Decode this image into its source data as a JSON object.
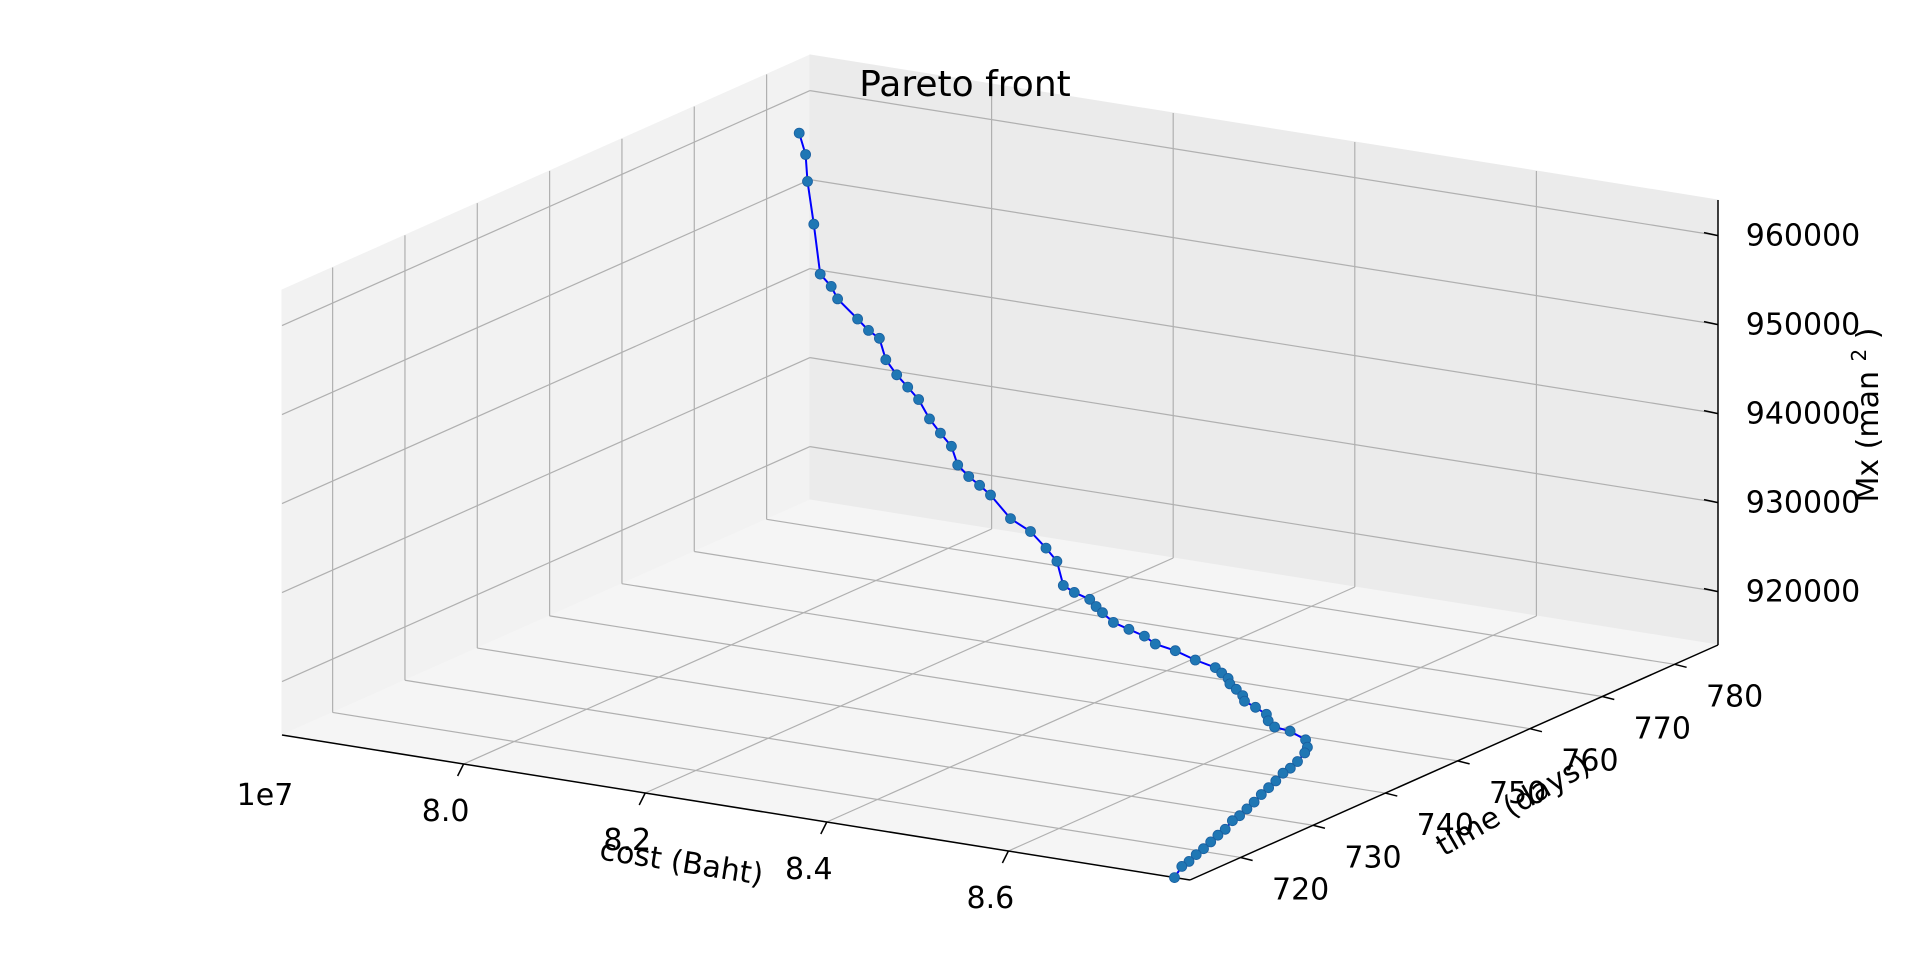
{
  "chart_data": {
    "type": "line",
    "title": "Pareto front",
    "xlabel": "cost (Baht)",
    "ylabel": "time (days)",
    "zlabel": "Mx (man",
    "zlabel_sup": "2",
    "zlabel_close": ")",
    "x_offset_text": "1e7",
    "x_ticks": [
      8.0,
      8.2,
      8.4,
      8.6
    ],
    "x_tick_labels": [
      "8.0",
      "8.2",
      "8.4",
      "8.6"
    ],
    "y_ticks": [
      720,
      730,
      740,
      750,
      760,
      770,
      780
    ],
    "y_tick_labels": [
      "720",
      "730",
      "740",
      "750",
      "760",
      "770",
      "780"
    ],
    "z_ticks": [
      920000,
      930000,
      940000,
      950000,
      960000
    ],
    "z_tick_labels": [
      "920000",
      "930000",
      "940000",
      "950000",
      "960000"
    ],
    "xlim": [
      7.8,
      8.8
    ],
    "ylim": [
      713,
      786
    ],
    "zlim": [
      914000,
      964000
    ],
    "grid": true,
    "series": [
      {
        "color": "#1f77b4",
        "line_color": "#0000ff",
        "points": [
          [
            7.82,
            782,
            957000
          ],
          [
            7.835,
            781,
            955200
          ],
          [
            7.845,
            780,
            952700
          ],
          [
            7.86,
            779,
            948500
          ],
          [
            7.875,
            778,
            943500
          ],
          [
            7.895,
            777,
            942800
          ],
          [
            7.91,
            776,
            942000
          ],
          [
            7.94,
            775,
            940600
          ],
          [
            7.96,
            774,
            940000
          ],
          [
            7.98,
            773,
            939800
          ],
          [
            7.995,
            772,
            938000
          ],
          [
            8.015,
            771,
            937000
          ],
          [
            8.035,
            770,
            936300
          ],
          [
            8.055,
            769,
            935600
          ],
          [
            8.075,
            768,
            934100
          ],
          [
            8.095,
            767,
            933200
          ],
          [
            8.115,
            766,
            932400
          ],
          [
            8.13,
            765,
            930900
          ],
          [
            8.15,
            764,
            930300
          ],
          [
            8.17,
            763,
            930000
          ],
          [
            8.19,
            762,
            929600
          ],
          [
            8.22,
            761,
            927800
          ],
          [
            8.25,
            760,
            927200
          ],
          [
            8.275,
            759,
            926100
          ],
          [
            8.295,
            758,
            925300
          ],
          [
            8.31,
            757,
            923200
          ],
          [
            8.33,
            756,
            923100
          ],
          [
            8.355,
            755,
            923100
          ],
          [
            8.37,
            754,
            922900
          ],
          [
            8.385,
            753,
            922800
          ],
          [
            8.405,
            752,
            922400
          ],
          [
            8.43,
            751,
            922400
          ],
          [
            8.455,
            750,
            922400
          ],
          [
            8.475,
            749,
            922200
          ],
          [
            8.505,
            748,
            922300
          ],
          [
            8.535,
            747,
            922100
          ],
          [
            8.565,
            746,
            922100
          ],
          [
            8.58,
            745,
            922100
          ],
          [
            8.595,
            744,
            922100
          ],
          [
            8.605,
            743,
            922000
          ],
          [
            8.62,
            742,
            922000
          ],
          [
            8.635,
            741,
            921900
          ],
          [
            8.645,
            740,
            921800
          ],
          [
            8.665,
            739,
            921800
          ],
          [
            8.685,
            738,
            921700
          ],
          [
            8.695,
            737,
            921500
          ],
          [
            8.71,
            736,
            921400
          ],
          [
            8.735,
            735,
            921700
          ],
          [
            8.76,
            734,
            921500
          ],
          [
            8.77,
            733,
            921200
          ],
          [
            8.775,
            732,
            921000
          ],
          [
            8.775,
            731,
            920400
          ],
          [
            8.775,
            730,
            920000
          ],
          [
            8.775,
            729,
            919800
          ],
          [
            8.775,
            728,
            919300
          ],
          [
            8.775,
            727,
            918900
          ],
          [
            8.775,
            726,
            918500
          ],
          [
            8.775,
            725,
            918000
          ],
          [
            8.775,
            724,
            917600
          ],
          [
            8.775,
            723,
            917200
          ],
          [
            8.775,
            722,
            917000
          ],
          [
            8.775,
            721,
            916400
          ],
          [
            8.775,
            720,
            916100
          ],
          [
            8.775,
            719,
            915700
          ],
          [
            8.775,
            718,
            915300
          ],
          [
            8.775,
            717,
            915000
          ],
          [
            8.775,
            716,
            914600
          ],
          [
            8.775,
            715,
            914400
          ],
          [
            8.775,
            714,
            913500
          ]
        ]
      }
    ]
  }
}
